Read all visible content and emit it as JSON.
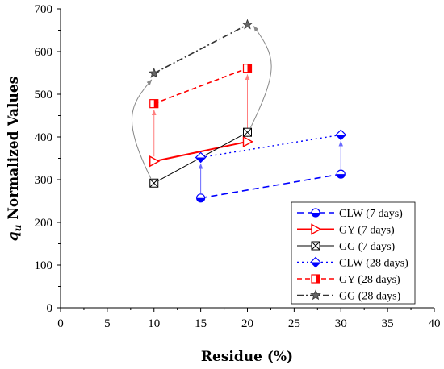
{
  "chart_data": {
    "type": "line",
    "xlabel": "Residue (%)",
    "ylabel_main": "q",
    "ylabel_sub": "u",
    "ylabel_rest": " Normalized Values",
    "xlim": [
      0,
      40
    ],
    "ylim": [
      0,
      700
    ],
    "xticks": [
      0,
      5,
      10,
      15,
      20,
      25,
      30,
      35,
      40
    ],
    "yticks": [
      0,
      100,
      200,
      300,
      400,
      500,
      600,
      700
    ],
    "grid": false,
    "legend_position": "bottom-right",
    "series": [
      {
        "name": "CLW (7 days)",
        "x": [
          15,
          30
        ],
        "y": [
          257,
          313
        ],
        "color": "#0000ff",
        "dash": "8,5",
        "marker": "circle-half",
        "lineWidth": 1.6
      },
      {
        "name": "GY (7 days)",
        "x": [
          10,
          20
        ],
        "y": [
          343,
          389
        ],
        "color": "#ff0000",
        "dash": "",
        "marker": "triangle-right",
        "lineWidth": 2
      },
      {
        "name": "GG (7 days)",
        "x": [
          10,
          20
        ],
        "y": [
          292,
          411
        ],
        "color": "#000000",
        "dash": "",
        "marker": "square-x",
        "lineWidth": 1
      },
      {
        "name": "CLW (28 days)",
        "x": [
          15,
          30
        ],
        "y": [
          352,
          405
        ],
        "color": "#0000ff",
        "dash": "2,4",
        "marker": "diamond-half",
        "lineWidth": 1.4
      },
      {
        "name": "GY (28 days)",
        "x": [
          10,
          20
        ],
        "y": [
          478,
          561
        ],
        "color": "#ff0000",
        "dash": "6,4",
        "marker": "square-half",
        "lineWidth": 1.6
      },
      {
        "name": "GG (28 days)",
        "x": [
          10,
          20
        ],
        "y": [
          549,
          663
        ],
        "color": "#333333",
        "dash": "8,3,2,3",
        "marker": "star",
        "lineWidth": 1.6
      }
    ],
    "arrows": [
      {
        "x": 15,
        "from": 257,
        "to": 352,
        "color": "#6a6aff"
      },
      {
        "x": 30,
        "from": 313,
        "to": 405,
        "color": "#6a6aff"
      },
      {
        "x": 10,
        "from": 343,
        "to": 478,
        "color": "#ff7f7f"
      },
      {
        "x": 20,
        "from": 389,
        "to": 561,
        "color": "#ff7f7f"
      }
    ]
  }
}
